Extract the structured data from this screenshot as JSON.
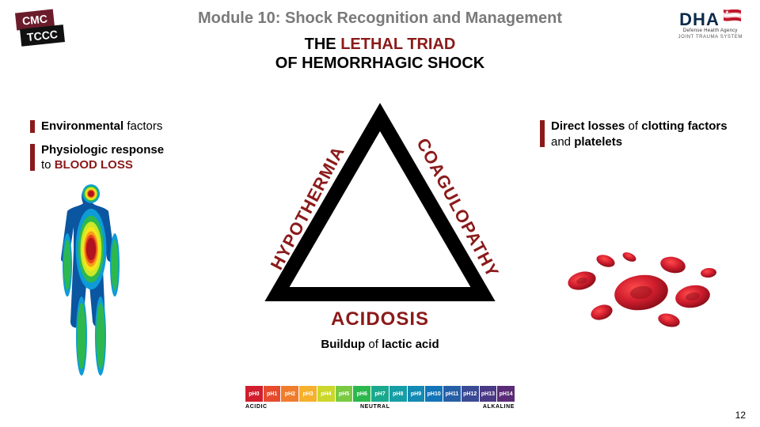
{
  "header": {
    "module": "Module 10: Shock Recognition and Management",
    "title_line1_prefix": "THE ",
    "title_line1_accent": "LETHAL TRIAD",
    "title_line2": "OF HEMORRHAGIC SHOCK"
  },
  "logos": {
    "cmc_line1": "CMC",
    "cmc_line2": "TCCC",
    "dha_text": "DHA",
    "dha_sub1": "Defense Health Agency",
    "dha_sub2": "JOINT TRAUMA SYSTEM"
  },
  "left_bullets": {
    "b1_bold": "Environmental",
    "b1_rest": " factors",
    "b2_bold": "Physiologic response",
    "b2_rest_prefix": "to ",
    "b2_accent": "BLOOD LOSS"
  },
  "right_bullets": {
    "b1_bold": "Direct losses",
    "b1_mid": " of ",
    "b1_bold2": "clotting factors",
    "b1_mid2": " and ",
    "b1_bold3": "platelets"
  },
  "triangle": {
    "left": "HYPOTHERMIA",
    "right": "COAGULOPATHY",
    "bottom": "ACIDOSIS",
    "sub_prefix": "Buildup",
    "sub_mid": " of ",
    "sub_bold": "lactic acid",
    "stroke_color": "#000000",
    "stroke_width": 18
  },
  "ph_scale": {
    "colors": [
      "#d11e2e",
      "#e64b2e",
      "#f07c2d",
      "#f5b02d",
      "#cbd72a",
      "#7ac943",
      "#2db84d",
      "#1aa98d",
      "#169ea6",
      "#148bb3",
      "#1374b8",
      "#265fa6",
      "#3b4a94",
      "#4a3a85",
      "#5a2c78"
    ],
    "labels": [
      "pH0",
      "pH1",
      "pH2",
      "pH3",
      "pH4",
      "pH5",
      "pH6",
      "pH7",
      "pH8",
      "pH9",
      "pH10",
      "pH11",
      "pH12",
      "pH13",
      "pH14"
    ],
    "axis_left": "ACIDIC",
    "axis_mid": "NEUTRAL",
    "axis_right": "ALKALINE"
  },
  "body_figure": {
    "outline": "#0a56a0",
    "layers": [
      "#0a56a0",
      "#0d9cd8",
      "#2db84d",
      "#cbe82a",
      "#f7e51a",
      "#f59b1a",
      "#e4431a",
      "#b1121f"
    ]
  },
  "cells_color": "#d11e2e",
  "page_number": "12"
}
